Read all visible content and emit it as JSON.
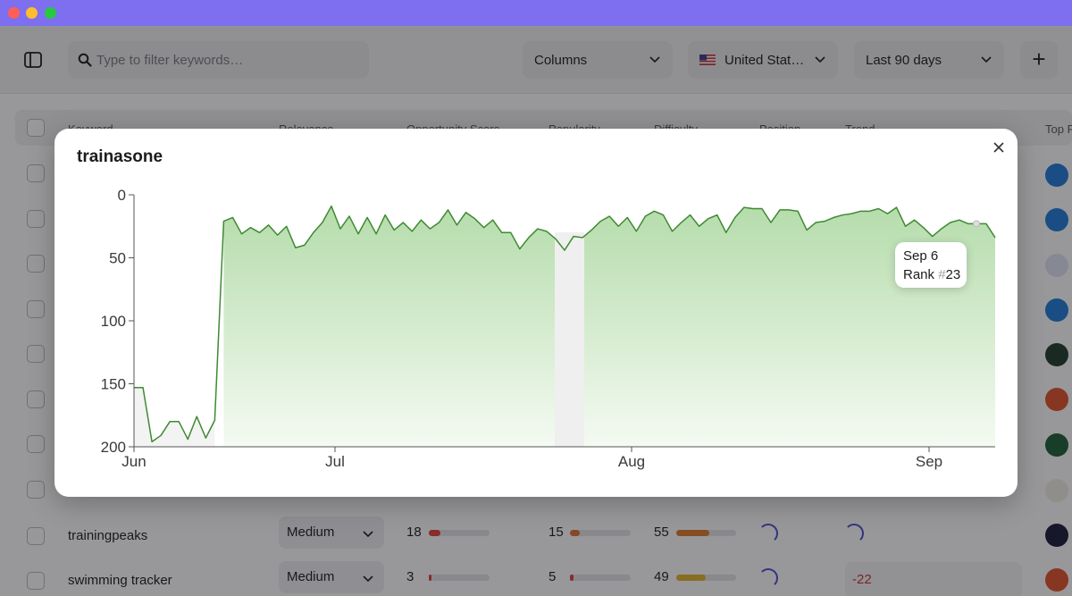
{
  "window": {
    "lights": [
      "close",
      "minimize",
      "zoom"
    ]
  },
  "toolbar": {
    "search_placeholder": "Type to filter keywords…",
    "columns_label": "Columns",
    "country_flag": "🇺🇸",
    "country_label": "United Stat…",
    "range_label": "Last 90 days",
    "add_label": "+"
  },
  "table": {
    "headers": [
      "Keyword",
      "Relevance",
      "Opportunity Score",
      "Popularity",
      "Difficulty",
      "Position",
      "Trend",
      "Top F"
    ],
    "visible_rows": [
      {
        "keyword": "trainingpeaks",
        "relevance": "Medium",
        "opportunity": "18",
        "opportunity_frac": 0.18,
        "popularity": "15",
        "popularity_frac": 0.15,
        "difficulty": "55",
        "difficulty_frac": 0.55
      },
      {
        "keyword": "swimming tracker",
        "relevance": "Medium",
        "opportunity": "3",
        "opportunity_frac": 0.03,
        "popularity": "5",
        "popularity_frac": 0.05,
        "difficulty": "49",
        "difficulty_frac": 0.49,
        "trend_value": "-22"
      }
    ]
  },
  "modal": {
    "title": "trainasone",
    "close_label": "×",
    "tooltip": {
      "date": "Sep 6",
      "rank_prefix": "Rank ",
      "rank_hash": "#",
      "rank_value": "23"
    }
  },
  "chart_data": {
    "type": "area",
    "y_inverted": true,
    "ylim": [
      0,
      200
    ],
    "yticks": [
      "0",
      "50",
      "100",
      "150",
      "200"
    ],
    "xticks": [
      "Jun",
      "Jul",
      "Aug",
      "Sep"
    ],
    "series": [
      {
        "values": [
          153,
          153,
          196,
          191,
          180,
          180,
          194,
          176,
          193,
          179,
          21,
          18,
          31,
          26,
          30,
          24,
          32,
          25,
          42,
          40,
          30,
          22,
          9,
          27,
          17,
          31,
          18,
          31,
          16,
          28,
          22,
          29,
          20,
          27,
          22,
          12,
          24,
          14,
          19,
          26,
          20,
          30,
          30,
          43,
          34,
          27,
          29,
          35,
          44,
          33,
          34,
          28,
          21,
          17,
          25,
          18,
          29,
          17,
          13,
          16,
          29,
          22,
          16,
          25,
          19,
          16,
          30,
          18,
          10,
          11,
          11,
          22,
          12,
          12,
          13,
          28,
          22,
          21,
          18,
          16,
          15,
          13,
          13,
          11,
          15,
          10,
          25,
          20,
          26,
          33,
          27,
          22,
          20,
          23,
          23,
          23,
          34
        ]
      }
    ],
    "highlight_point": {
      "label": "Sep 6",
      "value": 23
    }
  },
  "colors": {
    "line": "#3e8a32",
    "area_top": "#b5dcab",
    "area_bottom": "#f4faf2",
    "gap": "#efefef"
  }
}
